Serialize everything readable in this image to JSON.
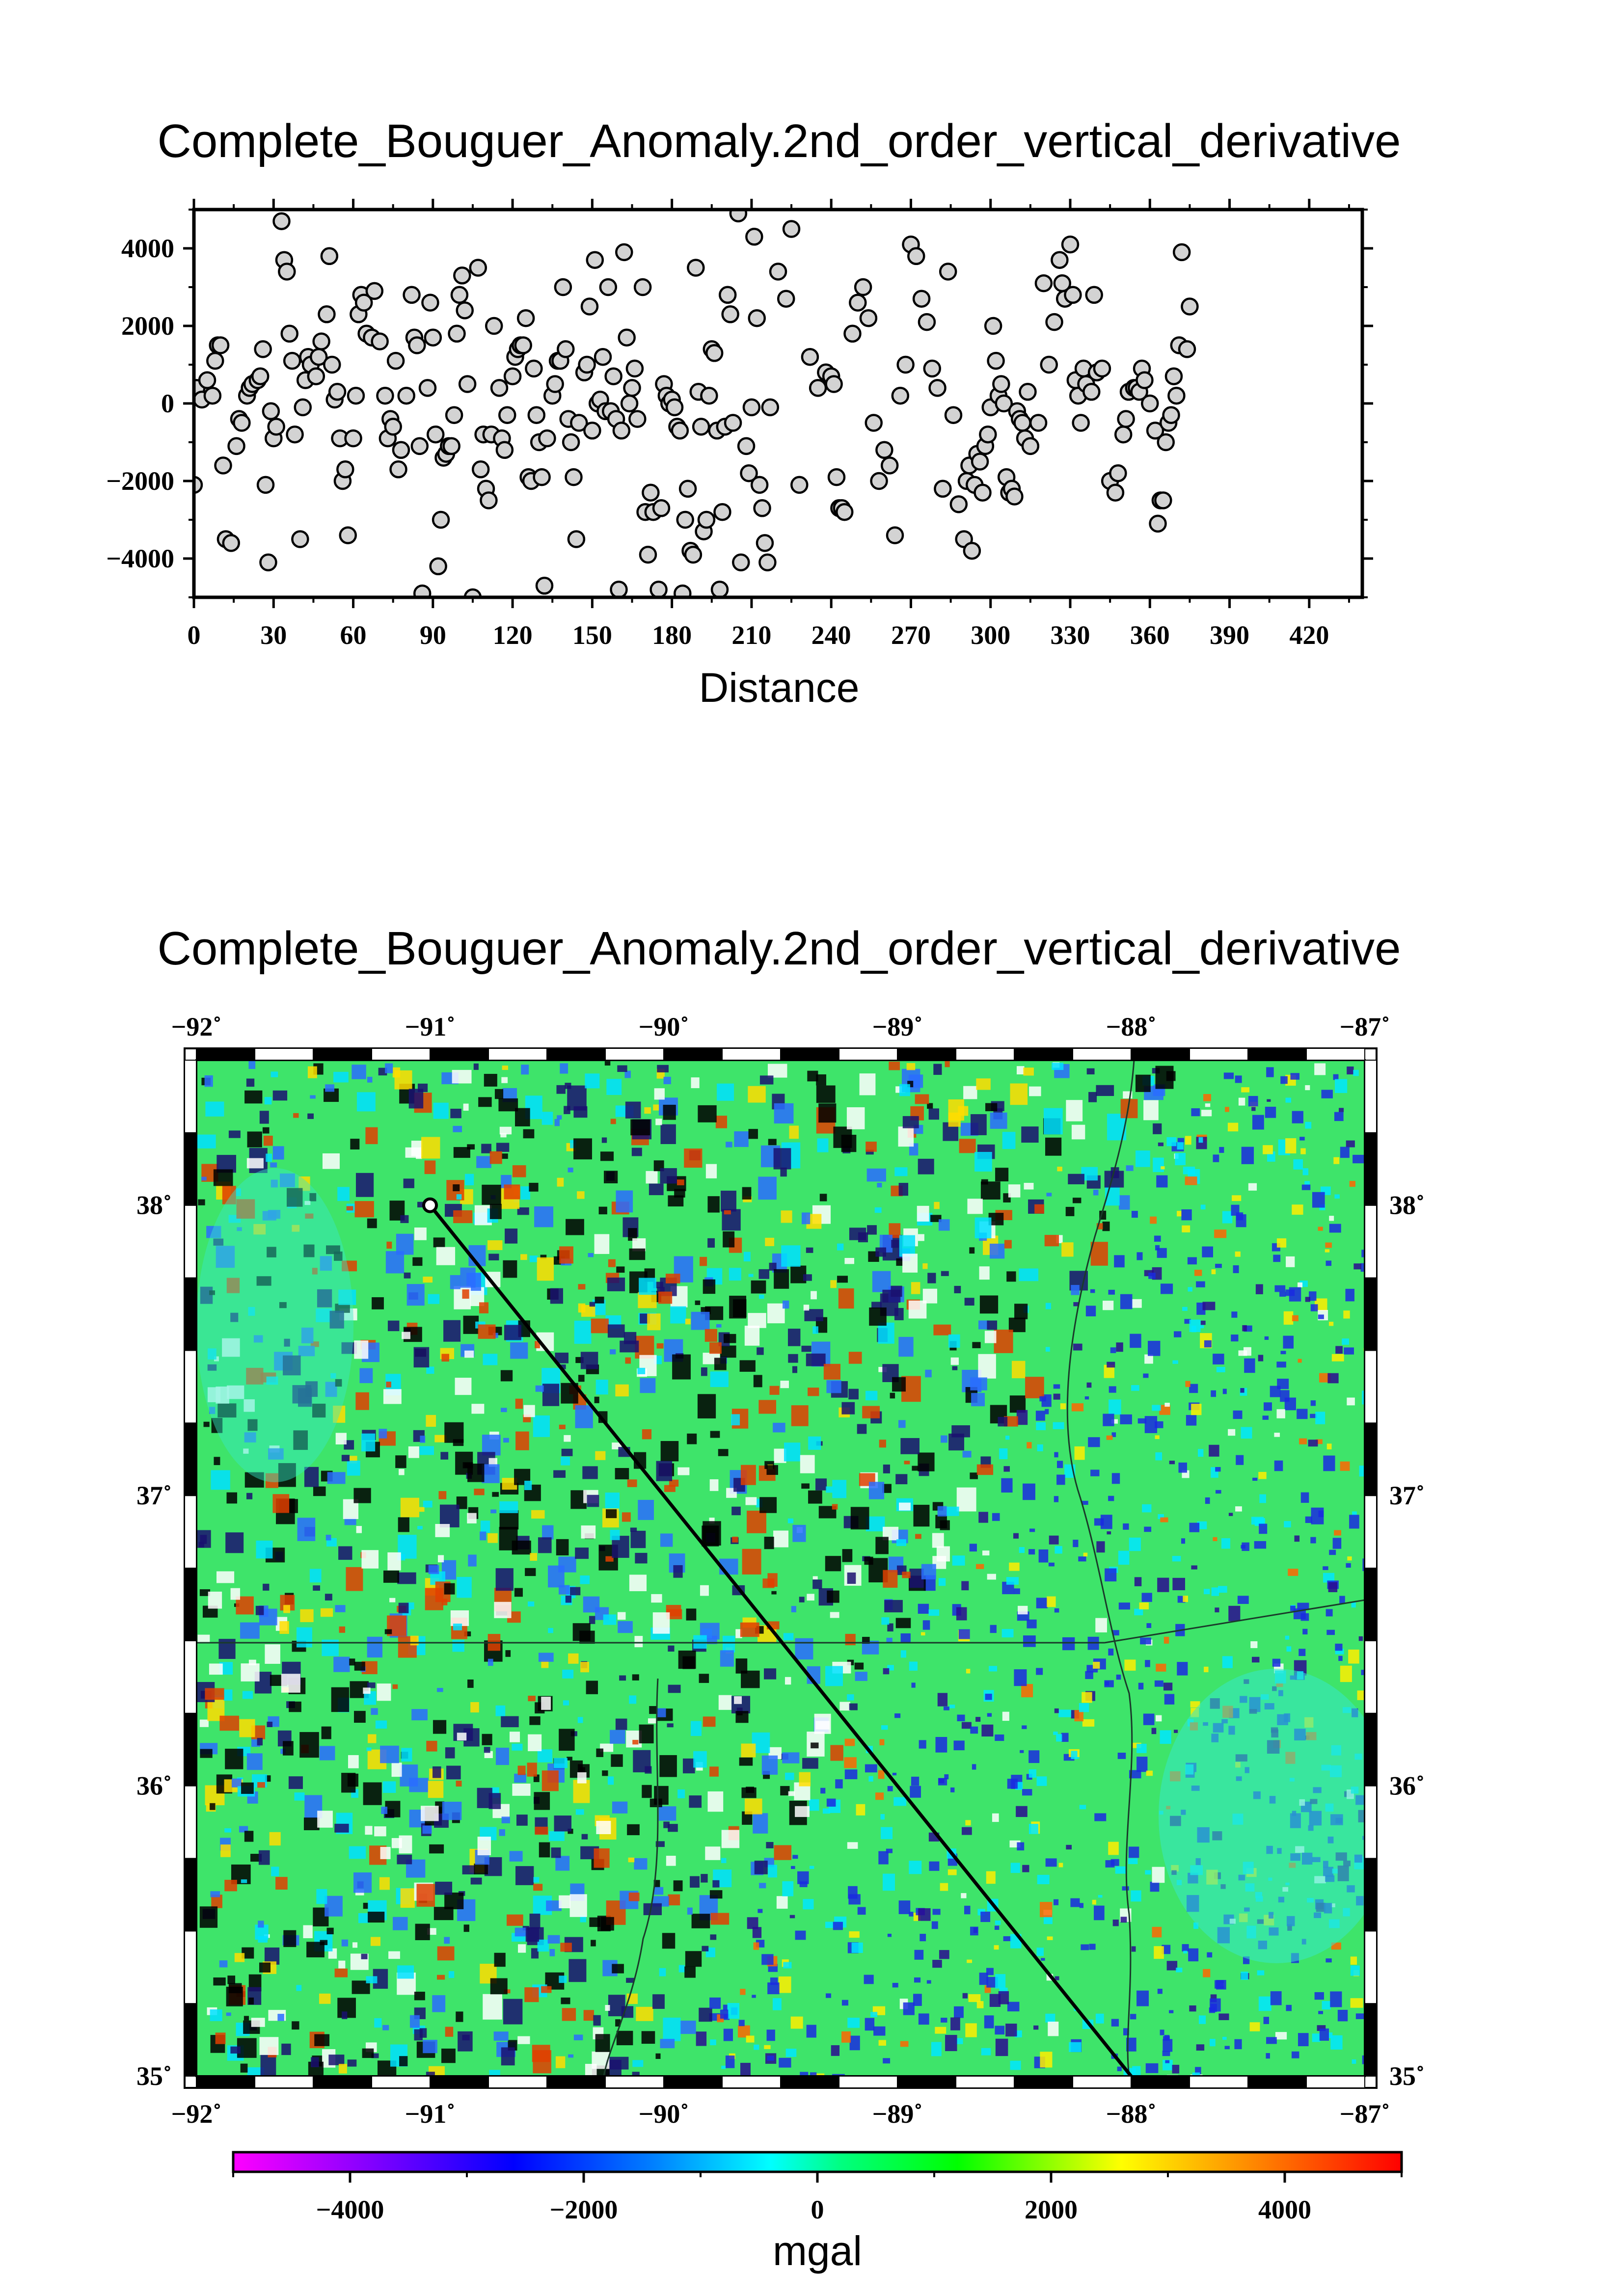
{
  "chart_data": [
    {
      "type": "scatter",
      "title": "Complete_Bouguer_Anomaly.2nd_order_vertical_derivative",
      "xlabel": "Distance",
      "ylabel": "",
      "xlim": [
        0,
        440
      ],
      "ylim": [
        -5000,
        5000
      ],
      "x_ticks": [
        "0",
        "30",
        "60",
        "90",
        "120",
        "150",
        "180",
        "210",
        "240",
        "270",
        "300",
        "330",
        "360",
        "390",
        "420"
      ],
      "y_ticks": [
        "−4000",
        "−2000",
        "0",
        "2000",
        "4000"
      ],
      "point_fill": "#d3d3d3",
      "points": [
        [
          0,
          -2100
        ],
        [
          1,
          400
        ],
        [
          3,
          100
        ],
        [
          5,
          600
        ],
        [
          7,
          200
        ],
        [
          8,
          1100
        ],
        [
          9,
          1500
        ],
        [
          10,
          1500
        ],
        [
          11,
          -1600
        ],
        [
          12,
          -3500
        ],
        [
          14,
          -3600
        ],
        [
          16,
          -1100
        ],
        [
          17,
          -400
        ],
        [
          18,
          -500
        ],
        [
          20,
          200
        ],
        [
          21,
          400
        ],
        [
          22,
          500
        ],
        [
          24,
          600
        ],
        [
          25,
          700
        ],
        [
          26,
          1400
        ],
        [
          27,
          -2100
        ],
        [
          28,
          -4100
        ],
        [
          29,
          -200
        ],
        [
          30,
          -900
        ],
        [
          31,
          -600
        ],
        [
          33,
          4700
        ],
        [
          34,
          3700
        ],
        [
          35,
          3400
        ],
        [
          36,
          1800
        ],
        [
          37,
          1100
        ],
        [
          38,
          -800
        ],
        [
          40,
          -3500
        ],
        [
          41,
          -100
        ],
        [
          42,
          600
        ],
        [
          43,
          1200
        ],
        [
          44,
          1000
        ],
        [
          46,
          700
        ],
        [
          47,
          1200
        ],
        [
          48,
          1600
        ],
        [
          50,
          2300
        ],
        [
          51,
          3800
        ],
        [
          52,
          1000
        ],
        [
          53,
          100
        ],
        [
          54,
          300
        ],
        [
          55,
          -900
        ],
        [
          56,
          -2000
        ],
        [
          57,
          -1700
        ],
        [
          58,
          -3400
        ],
        [
          60,
          -900
        ],
        [
          61,
          200
        ],
        [
          62,
          2300
        ],
        [
          63,
          2800
        ],
        [
          64,
          2600
        ],
        [
          65,
          1800
        ],
        [
          67,
          1700
        ],
        [
          68,
          2900
        ],
        [
          70,
          1600
        ],
        [
          72,
          200
        ],
        [
          73,
          -900
        ],
        [
          74,
          -400
        ],
        [
          75,
          -600
        ],
        [
          76,
          1100
        ],
        [
          77,
          -1700
        ],
        [
          78,
          -1200
        ],
        [
          80,
          200
        ],
        [
          82,
          2800
        ],
        [
          83,
          1700
        ],
        [
          84,
          1500
        ],
        [
          85,
          -1100
        ],
        [
          86,
          -4900
        ],
        [
          88,
          400
        ],
        [
          89,
          2600
        ],
        [
          90,
          1700
        ],
        [
          91,
          -800
        ],
        [
          92,
          -4200
        ],
        [
          93,
          -3000
        ],
        [
          94,
          -1400
        ],
        [
          95,
          -1300
        ],
        [
          96,
          -1100
        ],
        [
          97,
          -1100
        ],
        [
          98,
          -300
        ],
        [
          99,
          1800
        ],
        [
          100,
          2800
        ],
        [
          101,
          3300
        ],
        [
          102,
          2400
        ],
        [
          103,
          500
        ],
        [
          105,
          -5000
        ],
        [
          107,
          3500
        ],
        [
          108,
          -1700
        ],
        [
          109,
          -800
        ],
        [
          110,
          -2200
        ],
        [
          111,
          -2500
        ],
        [
          112,
          -800
        ],
        [
          113,
          2000
        ],
        [
          115,
          400
        ],
        [
          116,
          -900
        ],
        [
          117,
          -1200
        ],
        [
          118,
          -300
        ],
        [
          120,
          700
        ],
        [
          121,
          1200
        ],
        [
          122,
          1400
        ],
        [
          123,
          1500
        ],
        [
          124,
          1500
        ],
        [
          125,
          2200
        ],
        [
          126,
          -1900
        ],
        [
          127,
          -2000
        ],
        [
          128,
          900
        ],
        [
          129,
          -300
        ],
        [
          130,
          -1000
        ],
        [
          131,
          -1900
        ],
        [
          132,
          -4700
        ],
        [
          133,
          -900
        ],
        [
          135,
          200
        ],
        [
          136,
          500
        ],
        [
          137,
          1100
        ],
        [
          138,
          1100
        ],
        [
          139,
          3000
        ],
        [
          140,
          1400
        ],
        [
          141,
          -400
        ],
        [
          142,
          -1000
        ],
        [
          143,
          -1900
        ],
        [
          144,
          -3500
        ],
        [
          145,
          -500
        ],
        [
          147,
          800
        ],
        [
          148,
          1000
        ],
        [
          149,
          2500
        ],
        [
          150,
          -700
        ],
        [
          151,
          3700
        ],
        [
          152,
          0
        ],
        [
          153,
          100
        ],
        [
          154,
          1200
        ],
        [
          155,
          -200
        ],
        [
          156,
          3000
        ],
        [
          157,
          -200
        ],
        [
          158,
          700
        ],
        [
          159,
          -400
        ],
        [
          160,
          -4800
        ],
        [
          161,
          -700
        ],
        [
          162,
          3900
        ],
        [
          163,
          1700
        ],
        [
          164,
          0
        ],
        [
          165,
          400
        ],
        [
          166,
          900
        ],
        [
          167,
          -400
        ],
        [
          169,
          3000
        ],
        [
          170,
          -2800
        ],
        [
          171,
          -3900
        ],
        [
          172,
          -2300
        ],
        [
          173,
          -2800
        ],
        [
          175,
          -4800
        ],
        [
          176,
          -2700
        ],
        [
          177,
          500
        ],
        [
          178,
          200
        ],
        [
          179,
          0
        ],
        [
          180,
          100
        ],
        [
          181,
          -100
        ],
        [
          182,
          -600
        ],
        [
          183,
          -700
        ],
        [
          184,
          -4900
        ],
        [
          185,
          -3000
        ],
        [
          186,
          -2200
        ],
        [
          187,
          -3800
        ],
        [
          188,
          -3900
        ],
        [
          189,
          3500
        ],
        [
          190,
          300
        ],
        [
          191,
          -600
        ],
        [
          192,
          -3300
        ],
        [
          193,
          -3000
        ],
        [
          194,
          200
        ],
        [
          195,
          1400
        ],
        [
          196,
          1300
        ],
        [
          197,
          -700
        ],
        [
          198,
          -4800
        ],
        [
          199,
          -2800
        ],
        [
          200,
          -600
        ],
        [
          201,
          2800
        ],
        [
          202,
          2300
        ],
        [
          203,
          -500
        ],
        [
          205,
          4900
        ],
        [
          206,
          -4100
        ],
        [
          208,
          -1100
        ],
        [
          209,
          -1800
        ],
        [
          210,
          -100
        ],
        [
          211,
          4300
        ],
        [
          212,
          2200
        ],
        [
          213,
          -2100
        ],
        [
          214,
          -2700
        ],
        [
          215,
          -3600
        ],
        [
          216,
          -4100
        ],
        [
          217,
          -100
        ],
        [
          220,
          3400
        ],
        [
          223,
          2700
        ],
        [
          225,
          4500
        ],
        [
          228,
          -2100
        ],
        [
          232,
          1200
        ],
        [
          235,
          400
        ],
        [
          238,
          800
        ],
        [
          240,
          700
        ],
        [
          241,
          500
        ],
        [
          242,
          -1900
        ],
        [
          243,
          -2700
        ],
        [
          244,
          -2700
        ],
        [
          245,
          -2800
        ],
        [
          248,
          1800
        ],
        [
          250,
          2600
        ],
        [
          252,
          3000
        ],
        [
          254,
          2200
        ],
        [
          256,
          -500
        ],
        [
          258,
          -2000
        ],
        [
          260,
          -1200
        ],
        [
          262,
          -1600
        ],
        [
          264,
          -3400
        ],
        [
          266,
          200
        ],
        [
          268,
          1000
        ],
        [
          270,
          4100
        ],
        [
          272,
          3800
        ],
        [
          274,
          2700
        ],
        [
          276,
          2100
        ],
        [
          278,
          900
        ],
        [
          280,
          400
        ],
        [
          282,
          -2200
        ],
        [
          284,
          3400
        ],
        [
          286,
          -300
        ],
        [
          288,
          -2600
        ],
        [
          290,
          -3500
        ],
        [
          291,
          -2000
        ],
        [
          292,
          -1600
        ],
        [
          293,
          -3800
        ],
        [
          294,
          -2100
        ],
        [
          295,
          -1300
        ],
        [
          296,
          -1500
        ],
        [
          297,
          -2300
        ],
        [
          298,
          -1100
        ],
        [
          299,
          -800
        ],
        [
          300,
          -100
        ],
        [
          301,
          2000
        ],
        [
          302,
          1100
        ],
        [
          303,
          200
        ],
        [
          304,
          500
        ],
        [
          305,
          0
        ],
        [
          306,
          -1900
        ],
        [
          307,
          -2300
        ],
        [
          308,
          -2200
        ],
        [
          309,
          -2400
        ],
        [
          310,
          -200
        ],
        [
          311,
          -400
        ],
        [
          312,
          -500
        ],
        [
          313,
          -900
        ],
        [
          314,
          300
        ],
        [
          315,
          -1100
        ],
        [
          318,
          -500
        ],
        [
          320,
          3100
        ],
        [
          322,
          1000
        ],
        [
          324,
          2100
        ],
        [
          326,
          3700
        ],
        [
          327,
          3100
        ],
        [
          328,
          2700
        ],
        [
          330,
          4100
        ],
        [
          331,
          2800
        ],
        [
          332,
          600
        ],
        [
          333,
          200
        ],
        [
          334,
          -500
        ],
        [
          335,
          900
        ],
        [
          336,
          500
        ],
        [
          338,
          300
        ],
        [
          339,
          2800
        ],
        [
          340,
          800
        ],
        [
          342,
          900
        ],
        [
          345,
          -2000
        ],
        [
          347,
          -2300
        ],
        [
          348,
          -1800
        ],
        [
          350,
          -800
        ],
        [
          351,
          -400
        ],
        [
          352,
          300
        ],
        [
          354,
          400
        ],
        [
          355,
          400
        ],
        [
          356,
          300
        ],
        [
          357,
          900
        ],
        [
          358,
          600
        ],
        [
          360,
          0
        ],
        [
          362,
          -700
        ],
        [
          363,
          -3100
        ],
        [
          364,
          -2500
        ],
        [
          365,
          -2500
        ],
        [
          366,
          -1000
        ],
        [
          367,
          -500
        ],
        [
          368,
          -300
        ],
        [
          369,
          700
        ],
        [
          370,
          200
        ],
        [
          371,
          1500
        ],
        [
          372,
          3900
        ],
        [
          374,
          1400
        ],
        [
          375,
          2500
        ]
      ]
    },
    {
      "type": "heatmap",
      "title": "Complete_Bouguer_Anomaly.2nd_order_vertical_derivative",
      "x_ticks": [
        "−92˚",
        "−91˚",
        "−90˚",
        "−89˚",
        "−88˚",
        "−87˚"
      ],
      "y_ticks": [
        "35˚",
        "36˚",
        "37˚",
        "38˚"
      ],
      "xlim": [
        -92,
        -87
      ],
      "ylim": [
        35,
        38.5
      ],
      "profile_line": {
        "start": [
          -91,
          38
        ],
        "end": [
          -88,
          35
        ]
      },
      "colorbar": {
        "unit": "mgal",
        "range": [
          -5000,
          5000
        ],
        "ticks": [
          "−4000",
          "−2000",
          "0",
          "2000",
          "4000"
        ],
        "colors": [
          "#ff00ff",
          "#8000ff",
          "#0000ff",
          "#0080ff",
          "#00ffff",
          "#00ff80",
          "#00ff00",
          "#ffff00",
          "#ff8000",
          "#ff0000"
        ]
      }
    }
  ]
}
